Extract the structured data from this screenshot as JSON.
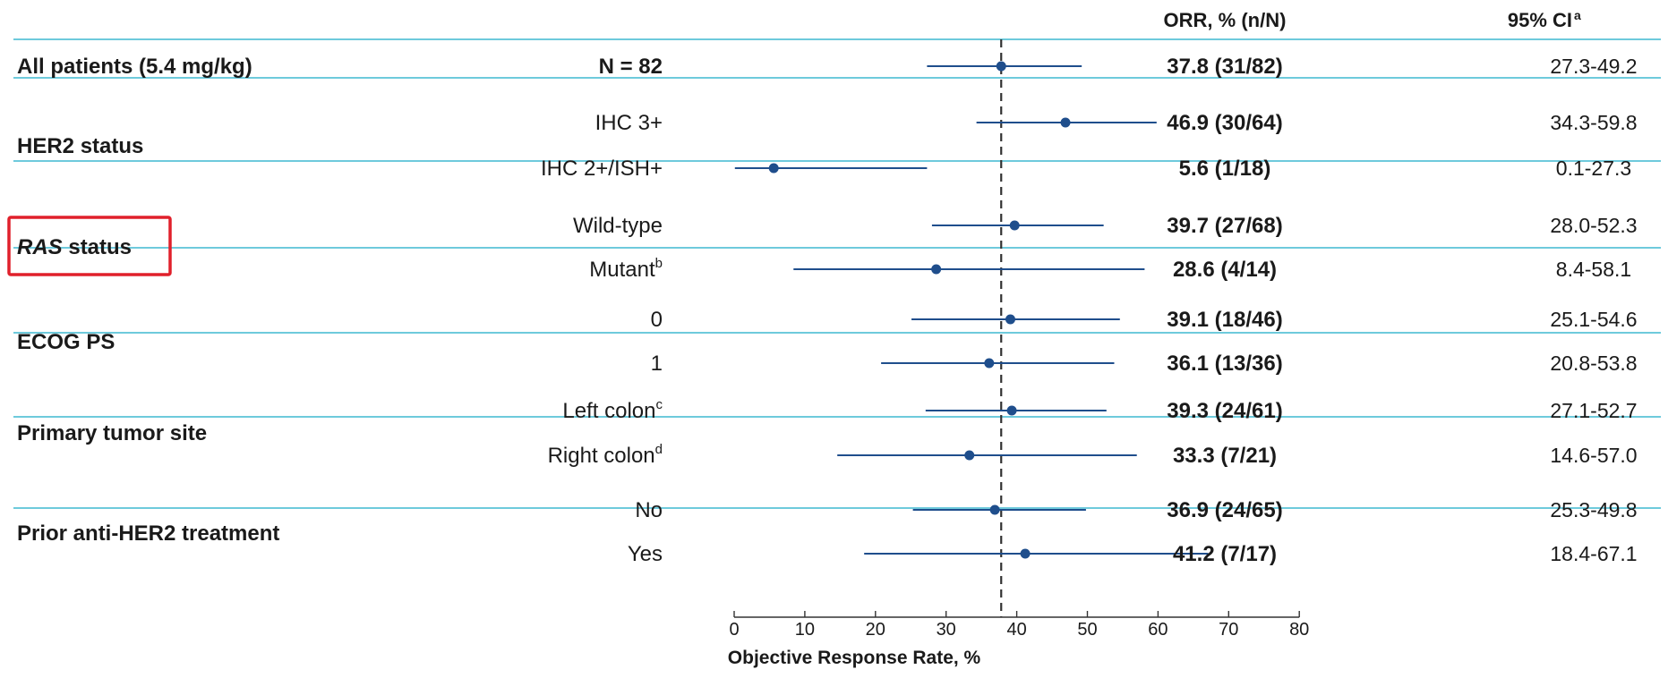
{
  "chart_data": {
    "type": "forest",
    "title": "",
    "xlabel": "Objective Response Rate, %",
    "xlim": [
      0,
      80
    ],
    "xticks": [
      0,
      10,
      20,
      30,
      40,
      50,
      60,
      70,
      80
    ],
    "reference_line": 37.8,
    "columns": {
      "orr": "ORR, % (n/N)",
      "ci": "95% CI",
      "ci_sup": "a"
    },
    "colors": {
      "marker": "#1f4e8c",
      "separator": "#3fb8d1",
      "highlight": "#e0202b",
      "reference": "#333333"
    },
    "groups": [
      {
        "label": "All patients (5.4 mg/kg)",
        "label_italic": "",
        "highlighted": false,
        "rows": [
          {
            "label": "N = 82",
            "sup": "",
            "bold": true,
            "point": 37.8,
            "ci": [
              27.3,
              49.2
            ],
            "orr_text": "37.8 (31/82)",
            "ci_text": "27.3-49.2"
          }
        ]
      },
      {
        "label": "HER2 status",
        "label_italic": "",
        "highlighted": false,
        "rows": [
          {
            "label": "IHC 3+",
            "sup": "",
            "bold": false,
            "point": 46.9,
            "ci": [
              34.3,
              59.8
            ],
            "orr_text": "46.9 (30/64)",
            "ci_text": "34.3-59.8"
          },
          {
            "label": "IHC 2+/ISH+",
            "sup": "",
            "bold": false,
            "point": 5.6,
            "ci": [
              0.1,
              27.3
            ],
            "orr_text": "5.6 (1/18)",
            "ci_text": "0.1-27.3"
          }
        ]
      },
      {
        "label": " status",
        "label_italic": "RAS",
        "highlighted": true,
        "rows": [
          {
            "label": "Wild-type",
            "sup": "",
            "bold": false,
            "point": 39.7,
            "ci": [
              28.0,
              52.3
            ],
            "orr_text": "39.7 (27/68)",
            "ci_text": "28.0-52.3"
          },
          {
            "label": "Mutant",
            "sup": "b",
            "bold": false,
            "point": 28.6,
            "ci": [
              8.4,
              58.1
            ],
            "orr_text": "28.6 (4/14)",
            "ci_text": "8.4-58.1"
          }
        ]
      },
      {
        "label": "ECOG PS",
        "label_italic": "",
        "highlighted": false,
        "rows": [
          {
            "label": "0",
            "sup": "",
            "bold": false,
            "point": 39.1,
            "ci": [
              25.1,
              54.6
            ],
            "orr_text": "39.1 (18/46)",
            "ci_text": "25.1-54.6"
          },
          {
            "label": "1",
            "sup": "",
            "bold": false,
            "point": 36.1,
            "ci": [
              20.8,
              53.8
            ],
            "orr_text": "36.1 (13/36)",
            "ci_text": "20.8-53.8"
          }
        ]
      },
      {
        "label": "Primary tumor site",
        "label_italic": "",
        "highlighted": false,
        "rows": [
          {
            "label": "Left colon",
            "sup": "c",
            "bold": false,
            "point": 39.3,
            "ci": [
              27.1,
              52.7
            ],
            "orr_text": "39.3 (24/61)",
            "ci_text": "27.1-52.7"
          },
          {
            "label": "Right colon",
            "sup": "d",
            "bold": false,
            "point": 33.3,
            "ci": [
              14.6,
              57.0
            ],
            "orr_text": "33.3 (7/21)",
            "ci_text": "14.6-57.0"
          }
        ]
      },
      {
        "label": "Prior anti-HER2 treatment",
        "label_italic": "",
        "highlighted": false,
        "rows": [
          {
            "label": "No",
            "sup": "",
            "bold": false,
            "point": 36.9,
            "ci": [
              25.3,
              49.8
            ],
            "orr_text": "36.9 (24/65)",
            "ci_text": "25.3-49.8"
          },
          {
            "label": "Yes",
            "sup": "",
            "bold": false,
            "point": 41.2,
            "ci": [
              18.4,
              67.1
            ],
            "orr_text": "41.2 (7/17)",
            "ci_text": "18.4-67.1"
          }
        ]
      }
    ]
  }
}
